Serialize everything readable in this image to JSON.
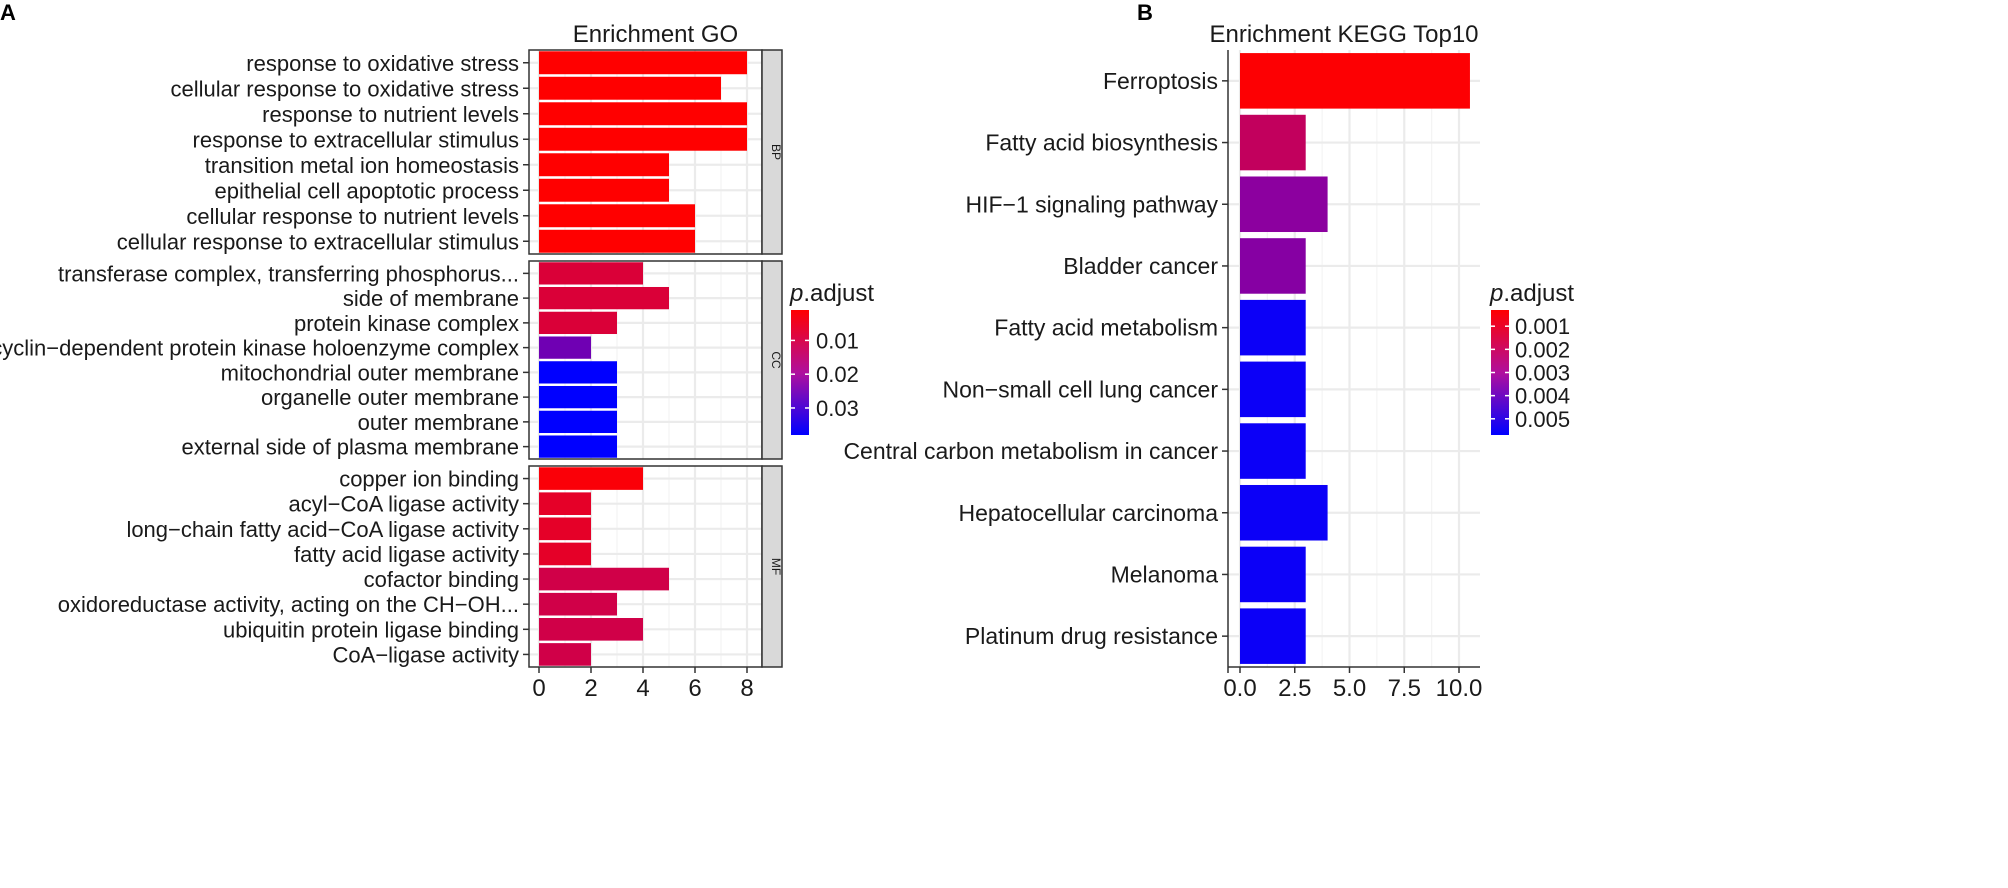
{
  "chart_data": [
    {
      "panel_label": "A",
      "type": "bar",
      "orientation": "horizontal",
      "title": "Enrichment GO",
      "xlabel": "",
      "ylabel": "",
      "xlim": [
        0,
        8.7
      ],
      "x_ticks": [
        0,
        2,
        4,
        6,
        8
      ],
      "x_tick_labels": [
        "0",
        "2",
        "4",
        "6",
        "8"
      ],
      "grid": true,
      "facets": [
        {
          "name": "BP",
          "categories": [
            "response to oxidative stress",
            "cellular response to oxidative stress",
            "response to nutrient levels",
            "response to extracellular stimulus",
            "transition metal ion homeostasis",
            "epithelial cell apoptotic process",
            "cellular response to nutrient levels",
            "cellular response to extracellular stimulus"
          ],
          "values": [
            8,
            7,
            8,
            8,
            5,
            5,
            6,
            6
          ],
          "p_adjust": [
            0.001,
            0.001,
            0.001,
            0.001,
            0.001,
            0.001,
            0.001,
            0.001
          ]
        },
        {
          "name": "CC",
          "categories": [
            "transferase complex, transferring phosphorus...",
            "side of membrane",
            "protein kinase complex",
            "cyclin−dependent protein kinase holoenzyme complex",
            "mitochondrial outer membrane",
            "organelle outer membrane",
            "outer membrane",
            "external side of plasma membrane"
          ],
          "values": [
            4,
            5,
            3,
            2,
            3,
            3,
            3,
            3
          ],
          "p_adjust": [
            0.008,
            0.008,
            0.008,
            0.025,
            0.038,
            0.038,
            0.038,
            0.038
          ]
        },
        {
          "name": "MF",
          "categories": [
            "copper ion binding",
            "acyl−CoA ligase activity",
            "long−chain fatty acid−CoA ligase activity",
            "fatty acid ligase activity",
            "cofactor binding",
            "oxidoreductase activity, acting on the CH−OH...",
            "ubiquitin protein ligase binding",
            "CoA−ligase activity"
          ],
          "values": [
            4,
            2,
            2,
            2,
            5,
            3,
            4,
            2
          ],
          "p_adjust": [
            0.002,
            0.006,
            0.006,
            0.006,
            0.01,
            0.01,
            0.01,
            0.01
          ]
        }
      ],
      "legend": {
        "title_italic": "p",
        "title_rest": ".adjust",
        "ticks": [
          0.01,
          0.02,
          0.03
        ],
        "tick_labels": [
          "0.01",
          "0.02",
          "0.03"
        ],
        "range": [
          0.001,
          0.038
        ],
        "placement": "right"
      }
    },
    {
      "panel_label": "B",
      "type": "bar",
      "orientation": "horizontal",
      "title": "Enrichment KEGG Top10",
      "xlabel": "",
      "ylabel": "",
      "xlim": [
        0,
        10.5
      ],
      "x_ticks": [
        0,
        2.5,
        5,
        7.5,
        10
      ],
      "x_tick_labels": [
        "0.0",
        "2.5",
        "5.0",
        "7.5",
        "10.0"
      ],
      "grid": true,
      "categories": [
        "Ferroptosis",
        "Fatty acid biosynthesis",
        "HIF−1 signaling pathway",
        "Bladder cancer",
        "Fatty acid metabolism",
        "Non−small cell lung cancer",
        "Central carbon metabolism in cancer",
        "Hepatocellular carcinoma",
        "Melanoma",
        "Platinum drug resistance"
      ],
      "values": [
        10.5,
        3,
        4,
        3,
        3,
        3,
        3,
        4,
        3,
        3
      ],
      "p_adjust": [
        0.00035,
        0.002,
        0.0033,
        0.0034,
        0.0055,
        0.0055,
        0.0055,
        0.0055,
        0.0055,
        0.0055
      ],
      "legend": {
        "title_italic": "p",
        "title_rest": ".adjust",
        "ticks": [
          0.001,
          0.002,
          0.003,
          0.004,
          0.005
        ],
        "tick_labels": [
          "0.001",
          "0.002",
          "0.003",
          "0.004",
          "0.005"
        ],
        "range": [
          0.0003,
          0.0057
        ],
        "placement": "right"
      }
    }
  ],
  "colors": {
    "low": "#ff0000",
    "high": "#0000ff",
    "grid": "#ebebeb",
    "strip": "#d9d9d9",
    "axis": "#333333"
  }
}
